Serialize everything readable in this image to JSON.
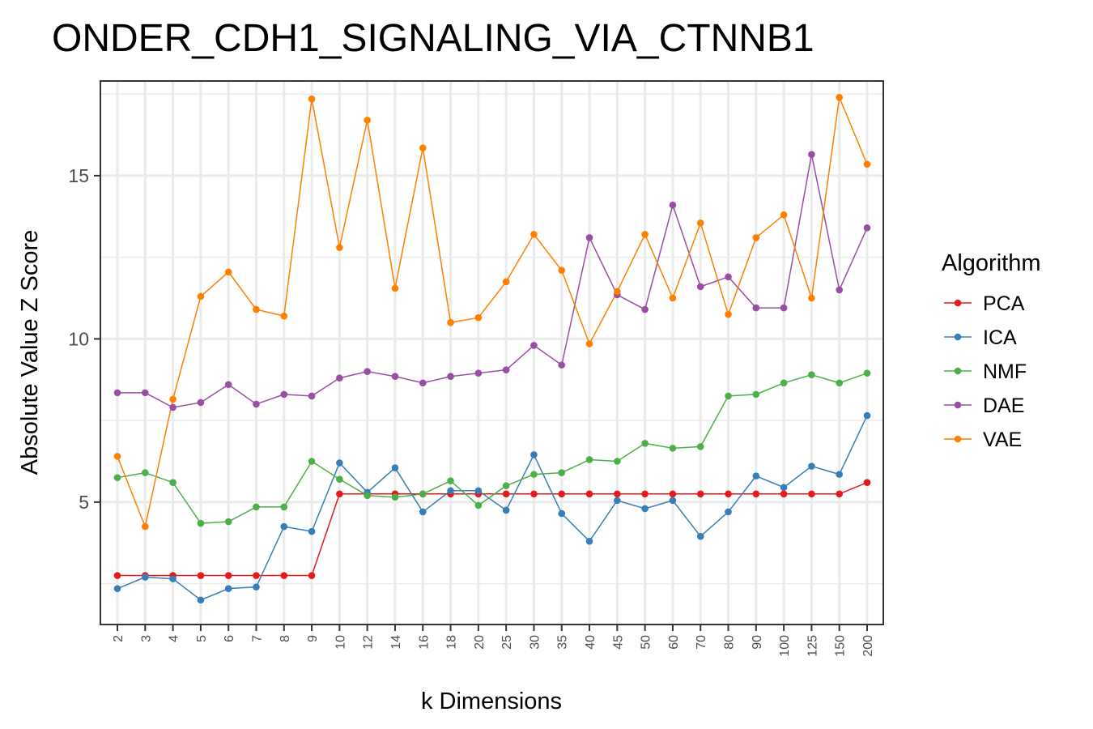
{
  "chart_data": {
    "type": "line",
    "title": "ONDER_CDH1_SIGNALING_VIA_CTNNB1",
    "xlabel": "k Dimensions",
    "ylabel": "Absolute Value Z Score",
    "categories": [
      "2",
      "3",
      "4",
      "5",
      "6",
      "7",
      "8",
      "9",
      "10",
      "12",
      "14",
      "16",
      "18",
      "20",
      "25",
      "30",
      "35",
      "40",
      "45",
      "50",
      "60",
      "70",
      "80",
      "90",
      "100",
      "125",
      "150",
      "200"
    ],
    "ylim": [
      1.25,
      17.9
    ],
    "yticks": [
      5,
      10,
      15
    ],
    "grid": true,
    "legend": {
      "title": "Algorithm",
      "placement": "right"
    },
    "series": [
      {
        "name": "PCA",
        "color": "#E41A1C",
        "values": [
          2.75,
          2.75,
          2.75,
          2.75,
          2.75,
          2.75,
          2.75,
          2.75,
          5.25,
          5.25,
          5.25,
          5.25,
          5.25,
          5.25,
          5.25,
          5.25,
          5.25,
          5.25,
          5.25,
          5.25,
          5.25,
          5.25,
          5.25,
          5.25,
          5.25,
          5.25,
          5.25,
          5.6
        ]
      },
      {
        "name": "ICA",
        "color": "#377EB8",
        "values": [
          2.35,
          2.7,
          2.65,
          2.0,
          2.35,
          2.4,
          4.25,
          4.1,
          6.2,
          5.3,
          6.05,
          4.7,
          5.35,
          5.35,
          4.75,
          6.45,
          4.65,
          3.8,
          5.05,
          4.8,
          5.05,
          3.95,
          4.7,
          5.8,
          5.45,
          6.1,
          5.85,
          7.65
        ]
      },
      {
        "name": "NMF",
        "color": "#4DAF4A",
        "values": [
          5.75,
          5.9,
          5.6,
          4.35,
          4.4,
          4.85,
          4.85,
          6.25,
          5.7,
          5.2,
          5.15,
          5.25,
          5.65,
          4.9,
          5.5,
          5.85,
          5.9,
          6.3,
          6.25,
          6.8,
          6.65,
          6.7,
          8.25,
          8.3,
          8.65,
          8.9,
          8.65,
          8.95
        ]
      },
      {
        "name": "DAE",
        "color": "#984EA3",
        "values": [
          8.35,
          8.35,
          7.9,
          8.05,
          8.6,
          8.0,
          8.3,
          8.25,
          8.8,
          9.0,
          8.85,
          8.65,
          8.85,
          8.95,
          9.05,
          9.8,
          9.2,
          13.1,
          11.35,
          10.9,
          14.1,
          11.6,
          11.9,
          10.95,
          10.95,
          15.65,
          11.5,
          13.4
        ]
      },
      {
        "name": "VAE",
        "color": "#FF7F00",
        "values": [
          6.4,
          4.25,
          8.15,
          11.3,
          12.05,
          10.9,
          10.7,
          17.35,
          12.8,
          16.7,
          11.55,
          15.85,
          10.5,
          10.65,
          11.75,
          13.2,
          12.1,
          9.85,
          11.45,
          13.2,
          11.25,
          13.55,
          10.75,
          13.1,
          13.8,
          11.25,
          17.4,
          15.35
        ]
      }
    ]
  }
}
